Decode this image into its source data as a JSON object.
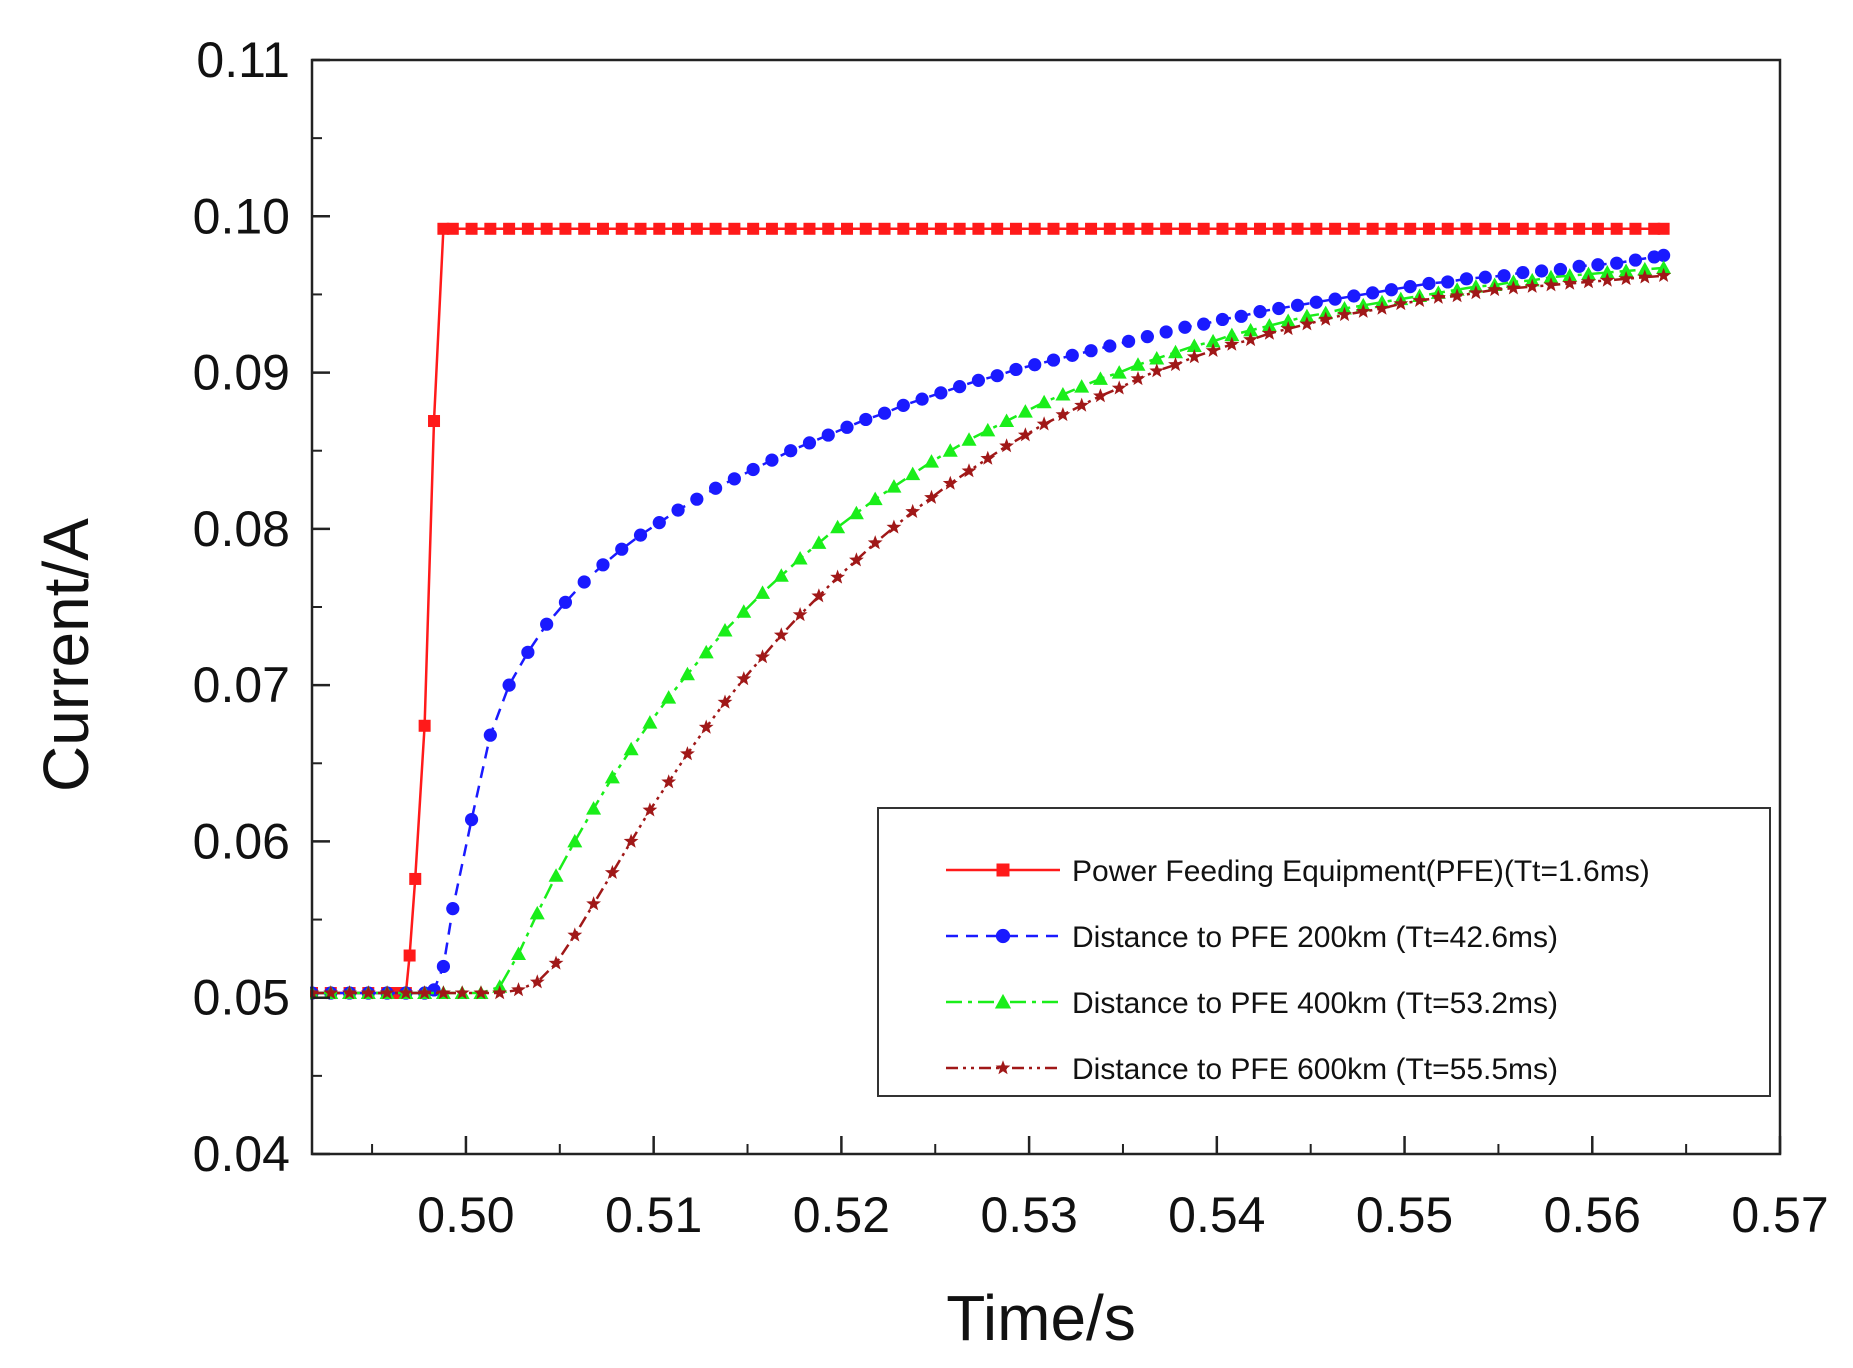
{
  "chart_data": {
    "type": "line",
    "title": "",
    "xlabel": "Time/s",
    "ylabel": "Current/A",
    "xlim": [
      0.4918,
      0.57
    ],
    "ylim": [
      0.04,
      0.11
    ],
    "xticks": [
      0.5,
      0.51,
      0.52,
      0.53,
      0.54,
      0.55,
      0.56,
      0.57
    ],
    "xtick_labels": [
      "0.50",
      "0.51",
      "0.52",
      "0.53",
      "0.54",
      "0.55",
      "0.56",
      "0.57"
    ],
    "yticks": [
      0.04,
      0.05,
      0.06,
      0.07,
      0.08,
      0.09,
      0.1,
      0.11
    ],
    "ytick_labels": [
      "0.04",
      "0.05",
      "0.06",
      "0.07",
      "0.08",
      "0.09",
      "0.10",
      "0.11"
    ],
    "legend_position": "bottom-right",
    "series": [
      {
        "name": "Power Feeding Equipment(PFE)(Tt=1.6ms)",
        "color": "#ff1a1a",
        "line_style": "solid",
        "marker": "square",
        "x": [
          0.4918,
          0.4928,
          0.4938,
          0.4948,
          0.4958,
          0.4963,
          0.4968,
          0.497,
          0.4973,
          0.4978,
          0.4983,
          0.4988,
          0.4993,
          0.5003,
          0.5013,
          0.5023,
          0.5033,
          0.5043,
          0.5053,
          0.5063,
          0.5073,
          0.5083,
          0.5093,
          0.5103,
          0.5113,
          0.5123,
          0.5133,
          0.5143,
          0.5153,
          0.5163,
          0.5173,
          0.5183,
          0.5193,
          0.5203,
          0.5213,
          0.5223,
          0.5233,
          0.5243,
          0.5253,
          0.5263,
          0.5273,
          0.5283,
          0.5293,
          0.5303,
          0.5313,
          0.5323,
          0.5333,
          0.5343,
          0.5353,
          0.5363,
          0.5373,
          0.5383,
          0.5393,
          0.5403,
          0.5413,
          0.5423,
          0.5433,
          0.5443,
          0.5453,
          0.5463,
          0.5473,
          0.5483,
          0.5493,
          0.5503,
          0.5513,
          0.5523,
          0.5533,
          0.5543,
          0.5553,
          0.5563,
          0.5573,
          0.5583,
          0.5593,
          0.5603,
          0.5613,
          0.5623,
          0.5633,
          0.5638
        ],
        "y": [
          0.0503,
          0.0503,
          0.0503,
          0.0503,
          0.0503,
          0.0503,
          0.0503,
          0.0527,
          0.0576,
          0.0674,
          0.0869,
          0.0992,
          0.0992,
          0.0992,
          0.0992,
          0.0992,
          0.0992,
          0.0992,
          0.0992,
          0.0992,
          0.0992,
          0.0992,
          0.0992,
          0.0992,
          0.0992,
          0.0992,
          0.0992,
          0.0992,
          0.0992,
          0.0992,
          0.0992,
          0.0992,
          0.0992,
          0.0992,
          0.0992,
          0.0992,
          0.0992,
          0.0992,
          0.0992,
          0.0992,
          0.0992,
          0.0992,
          0.0992,
          0.0992,
          0.0992,
          0.0992,
          0.0992,
          0.0992,
          0.0992,
          0.0992,
          0.0992,
          0.0992,
          0.0992,
          0.0992,
          0.0992,
          0.0992,
          0.0992,
          0.0992,
          0.0992,
          0.0992,
          0.0992,
          0.0992,
          0.0992,
          0.0992,
          0.0992,
          0.0992,
          0.0992,
          0.0992,
          0.0992,
          0.0992,
          0.0992,
          0.0992,
          0.0992,
          0.0992,
          0.0992,
          0.0992,
          0.0992,
          0.0992
        ]
      },
      {
        "name": "Distance to PFE 200km (Tt=42.6ms)",
        "color": "#1a1aff",
        "line_style": "dash",
        "marker": "circle",
        "x": [
          0.4918,
          0.4928,
          0.4938,
          0.4948,
          0.4958,
          0.4968,
          0.4978,
          0.4983,
          0.4988,
          0.4993,
          0.5003,
          0.5013,
          0.5023,
          0.5033,
          0.5043,
          0.5053,
          0.5063,
          0.5073,
          0.5083,
          0.5093,
          0.5103,
          0.5113,
          0.5123,
          0.5133,
          0.5143,
          0.5153,
          0.5163,
          0.5173,
          0.5183,
          0.5193,
          0.5203,
          0.5213,
          0.5223,
          0.5233,
          0.5243,
          0.5253,
          0.5263,
          0.5273,
          0.5283,
          0.5293,
          0.5303,
          0.5313,
          0.5323,
          0.5333,
          0.5343,
          0.5353,
          0.5363,
          0.5373,
          0.5383,
          0.5393,
          0.5403,
          0.5413,
          0.5423,
          0.5433,
          0.5443,
          0.5453,
          0.5463,
          0.5473,
          0.5483,
          0.5493,
          0.5503,
          0.5513,
          0.5523,
          0.5533,
          0.5543,
          0.5553,
          0.5563,
          0.5573,
          0.5583,
          0.5593,
          0.5603,
          0.5613,
          0.5623,
          0.5633,
          0.5638
        ],
        "y": [
          0.0503,
          0.0503,
          0.0503,
          0.0503,
          0.0503,
          0.0503,
          0.0503,
          0.0505,
          0.052,
          0.0557,
          0.0614,
          0.0668,
          0.07,
          0.0721,
          0.0739,
          0.0753,
          0.0766,
          0.0777,
          0.0787,
          0.0796,
          0.0804,
          0.0812,
          0.0819,
          0.0826,
          0.0832,
          0.0838,
          0.0844,
          0.085,
          0.0855,
          0.086,
          0.0865,
          0.087,
          0.0874,
          0.0879,
          0.0883,
          0.0887,
          0.0891,
          0.0895,
          0.0898,
          0.0902,
          0.0905,
          0.0908,
          0.0911,
          0.0914,
          0.0917,
          0.092,
          0.0923,
          0.0926,
          0.0929,
          0.0931,
          0.0934,
          0.0936,
          0.0939,
          0.0941,
          0.0943,
          0.0945,
          0.0947,
          0.0949,
          0.0951,
          0.0953,
          0.0955,
          0.0957,
          0.0958,
          0.096,
          0.0961,
          0.0962,
          0.0964,
          0.0965,
          0.0966,
          0.0968,
          0.0969,
          0.097,
          0.0972,
          0.0974,
          0.0975
        ]
      },
      {
        "name": "Distance to PFE 400km (Tt=53.2ms)",
        "color": "#1aee1a",
        "line_style": "dashdot",
        "marker": "triangle",
        "x": [
          0.4918,
          0.4928,
          0.4938,
          0.4948,
          0.4958,
          0.4968,
          0.4978,
          0.4988,
          0.4998,
          0.5008,
          0.5018,
          0.5028,
          0.5038,
          0.5048,
          0.5058,
          0.5068,
          0.5078,
          0.5088,
          0.5098,
          0.5108,
          0.5118,
          0.5128,
          0.5138,
          0.5148,
          0.5158,
          0.5168,
          0.5178,
          0.5188,
          0.5198,
          0.5208,
          0.5218,
          0.5228,
          0.5238,
          0.5248,
          0.5258,
          0.5268,
          0.5278,
          0.5288,
          0.5298,
          0.5308,
          0.5318,
          0.5328,
          0.5338,
          0.5348,
          0.5358,
          0.5368,
          0.5378,
          0.5388,
          0.5398,
          0.5408,
          0.5418,
          0.5428,
          0.5438,
          0.5448,
          0.5458,
          0.5468,
          0.5478,
          0.5488,
          0.5498,
          0.5508,
          0.5518,
          0.5528,
          0.5538,
          0.5548,
          0.5558,
          0.5568,
          0.5578,
          0.5588,
          0.5598,
          0.5608,
          0.5618,
          0.5628,
          0.5638
        ],
        "y": [
          0.0503,
          0.0503,
          0.0503,
          0.0503,
          0.0503,
          0.0503,
          0.0503,
          0.0503,
          0.0503,
          0.0503,
          0.0507,
          0.0528,
          0.0554,
          0.0578,
          0.06,
          0.0621,
          0.0641,
          0.0659,
          0.0676,
          0.0692,
          0.0707,
          0.0721,
          0.0735,
          0.0747,
          0.0759,
          0.077,
          0.0781,
          0.0791,
          0.0801,
          0.081,
          0.0819,
          0.0827,
          0.0835,
          0.0843,
          0.085,
          0.0857,
          0.0863,
          0.0869,
          0.0875,
          0.0881,
          0.0886,
          0.0891,
          0.0896,
          0.09,
          0.0905,
          0.0909,
          0.0913,
          0.0917,
          0.092,
          0.0924,
          0.0927,
          0.093,
          0.0933,
          0.0936,
          0.0938,
          0.0941,
          0.0943,
          0.0945,
          0.0947,
          0.0949,
          0.0951,
          0.0953,
          0.0955,
          0.0956,
          0.0958,
          0.0959,
          0.0961,
          0.0962,
          0.0963,
          0.0964,
          0.0965,
          0.0966,
          0.0967
        ]
      },
      {
        "name": "Distance to PFE 600km (Tt=55.5ms)",
        "color": "#a01818",
        "line_style": "dashdotdot",
        "marker": "star",
        "x": [
          0.4918,
          0.4928,
          0.4938,
          0.4948,
          0.4958,
          0.4968,
          0.4978,
          0.4988,
          0.4998,
          0.5008,
          0.5018,
          0.5028,
          0.5038,
          0.5048,
          0.5058,
          0.5068,
          0.5078,
          0.5088,
          0.5098,
          0.5108,
          0.5118,
          0.5128,
          0.5138,
          0.5148,
          0.5158,
          0.5168,
          0.5178,
          0.5188,
          0.5198,
          0.5208,
          0.5218,
          0.5228,
          0.5238,
          0.5248,
          0.5258,
          0.5268,
          0.5278,
          0.5288,
          0.5298,
          0.5308,
          0.5318,
          0.5328,
          0.5338,
          0.5348,
          0.5358,
          0.5368,
          0.5378,
          0.5388,
          0.5398,
          0.5408,
          0.5418,
          0.5428,
          0.5438,
          0.5448,
          0.5458,
          0.5468,
          0.5478,
          0.5488,
          0.5498,
          0.5508,
          0.5518,
          0.5528,
          0.5538,
          0.5548,
          0.5558,
          0.5568,
          0.5578,
          0.5588,
          0.5598,
          0.5608,
          0.5618,
          0.5628,
          0.5638
        ],
        "y": [
          0.0503,
          0.0503,
          0.0503,
          0.0503,
          0.0503,
          0.0503,
          0.0503,
          0.0503,
          0.0503,
          0.0503,
          0.0503,
          0.0505,
          0.051,
          0.0522,
          0.054,
          0.056,
          0.058,
          0.06,
          0.062,
          0.0638,
          0.0656,
          0.0673,
          0.0689,
          0.0704,
          0.0718,
          0.0732,
          0.0745,
          0.0757,
          0.0769,
          0.078,
          0.0791,
          0.0801,
          0.0811,
          0.082,
          0.0829,
          0.0837,
          0.0845,
          0.0853,
          0.086,
          0.0867,
          0.0873,
          0.0879,
          0.0885,
          0.089,
          0.0896,
          0.0901,
          0.0905,
          0.091,
          0.0914,
          0.0918,
          0.0921,
          0.0925,
          0.0928,
          0.0931,
          0.0934,
          0.0937,
          0.0939,
          0.0941,
          0.0944,
          0.0946,
          0.0948,
          0.0949,
          0.0951,
          0.0953,
          0.0954,
          0.0955,
          0.0956,
          0.0957,
          0.0958,
          0.0959,
          0.096,
          0.0961,
          0.0962
        ]
      }
    ]
  }
}
